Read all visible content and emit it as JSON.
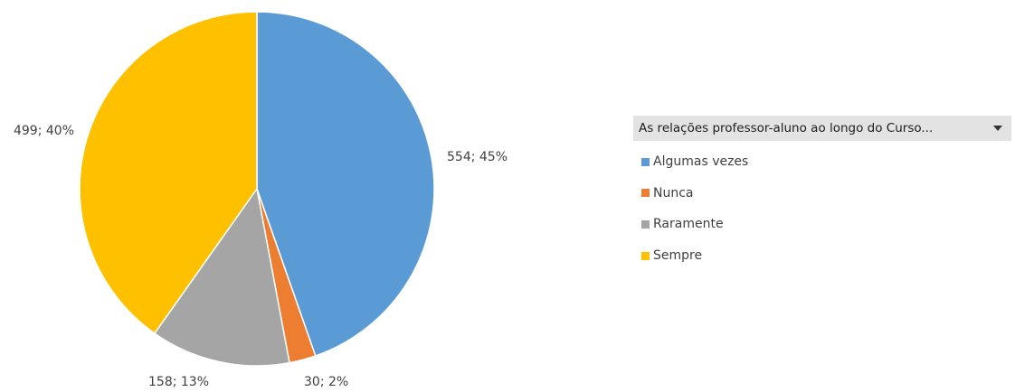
{
  "chart_data": {
    "type": "pie",
    "categories": [
      "Algumas vezes",
      "Nunca",
      "Raramente",
      "Sempre"
    ],
    "values": [
      554,
      30,
      158,
      499
    ],
    "percent_labels": [
      "45%",
      "2%",
      "13%",
      "40%"
    ],
    "data_labels": [
      "554; 45%",
      "30; 2%",
      "158; 13%",
      "499; 40%"
    ],
    "colors": [
      "#5B9BD5",
      "#ED7D31",
      "#A5A5A5",
      "#FFC000"
    ],
    "start_angle": "12 o'clock",
    "direction": "clockwise",
    "legend": {
      "title": "As relações professor-aluno ao longo do Curso...",
      "placement": "right",
      "has_dropdown": true
    }
  }
}
